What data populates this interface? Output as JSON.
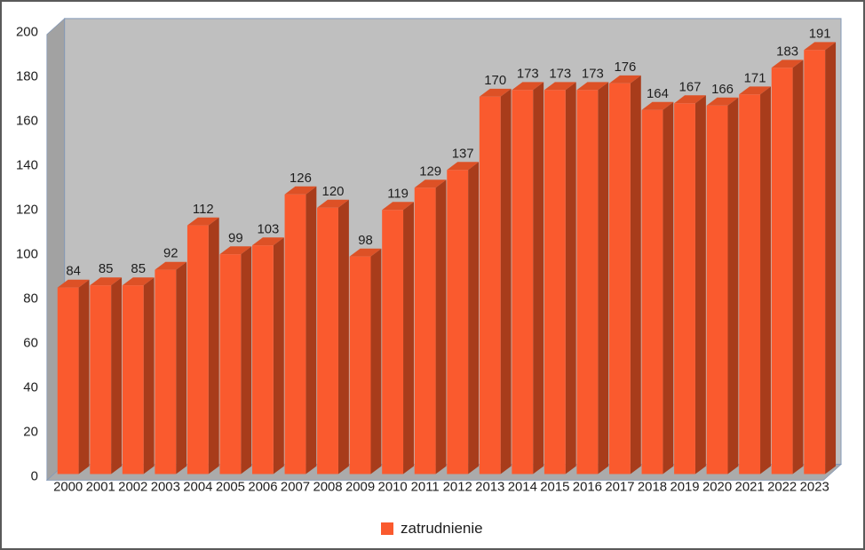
{
  "chart_data": {
    "type": "bar",
    "style": "3d-clustered-column",
    "title": "",
    "xlabel": "",
    "ylabel": "",
    "categories": [
      "2000",
      "2001",
      "2002",
      "2003",
      "2004",
      "2005",
      "2006",
      "2007",
      "2008",
      "2009",
      "2010",
      "2011",
      "2012",
      "2013",
      "2014",
      "2015",
      "2016",
      "2017",
      "2018",
      "2019",
      "2020",
      "2021",
      "2022",
      "2023"
    ],
    "series": [
      {
        "name": "zatrudnienie",
        "values": [
          84,
          85,
          85,
          92,
          112,
          99,
          103,
          126,
          120,
          98,
          119,
          129,
          137,
          170,
          173,
          173,
          173,
          176,
          164,
          167,
          166,
          171,
          183,
          191
        ]
      }
    ],
    "value_labels_shown": true,
    "grid": false,
    "ylim": [
      0,
      200
    ],
    "ytick_step": 20,
    "yticks": [
      0,
      20,
      40,
      60,
      80,
      100,
      120,
      140,
      160,
      180,
      200
    ],
    "legend": {
      "position": "bottom",
      "label": "zatrudnienie"
    },
    "colors": {
      "bar_front": "#FA5A2E",
      "bar_top": "#DD5126",
      "bar_side": "#A83C1B",
      "back_wall": "#BFBFBF",
      "side_wall": "#A2A2A2",
      "floor": "#ABABAB",
      "wall_border": "#8499B7",
      "axis_line": "#7E96BC",
      "label_text": "#1E1E1E",
      "background": "#FFFFFF"
    }
  }
}
